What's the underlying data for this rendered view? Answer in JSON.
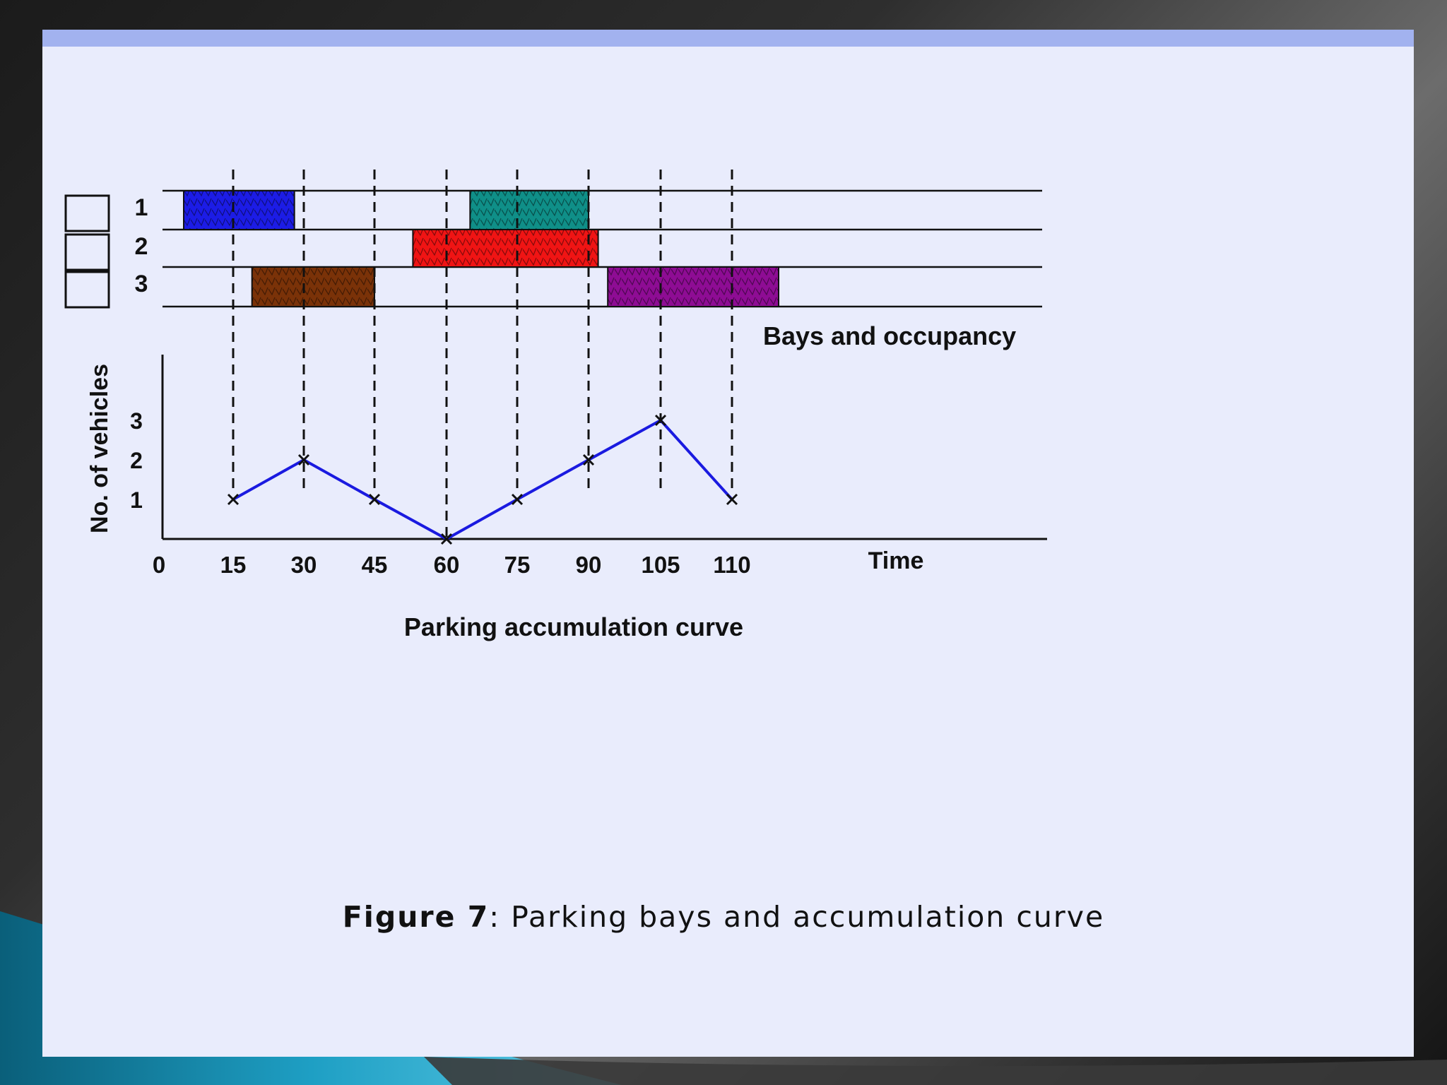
{
  "caption": {
    "label": "Figure 7",
    "separator": ":",
    "text": "Parking bays and accumulation curve"
  },
  "colors": {
    "slide_bg": "#e9ecfc",
    "top_bar": "#a2b2ef",
    "curve": "#1a1ae0"
  },
  "chart_data": [
    {
      "type": "bar",
      "subtype": "gantt",
      "title": "Bays and occupancy",
      "bays": [
        "1",
        "2",
        "3"
      ],
      "x_range": [
        0,
        110
      ],
      "occupancy": [
        {
          "bay": "1",
          "start": 5,
          "end": 28,
          "color": "#1c1ce6"
        },
        {
          "bay": "1",
          "start": 65,
          "end": 90,
          "color": "#0f8f88"
        },
        {
          "bay": "2",
          "start": 53,
          "end": 92,
          "color": "#f01414"
        },
        {
          "bay": "3",
          "start": 19,
          "end": 45,
          "color": "#7a3208"
        },
        {
          "bay": "3",
          "start": 94,
          "end": 120,
          "color": "#8e0c94"
        }
      ],
      "event_lines_at": [
        15,
        30,
        45,
        60,
        75,
        90,
        105,
        110
      ]
    },
    {
      "type": "line",
      "title": "Parking accumulation curve",
      "xlabel": "Time",
      "ylabel": "No. of vehicles",
      "x_ticks": [
        "0",
        "15",
        "30",
        "45",
        "60",
        "75",
        "90",
        "105",
        "110"
      ],
      "y_ticks": [
        "1",
        "2",
        "3"
      ],
      "x": [
        15,
        30,
        45,
        60,
        75,
        90,
        105,
        110
      ],
      "y": [
        1,
        2,
        1,
        0,
        1,
        2,
        3,
        1
      ],
      "grid": false
    }
  ]
}
